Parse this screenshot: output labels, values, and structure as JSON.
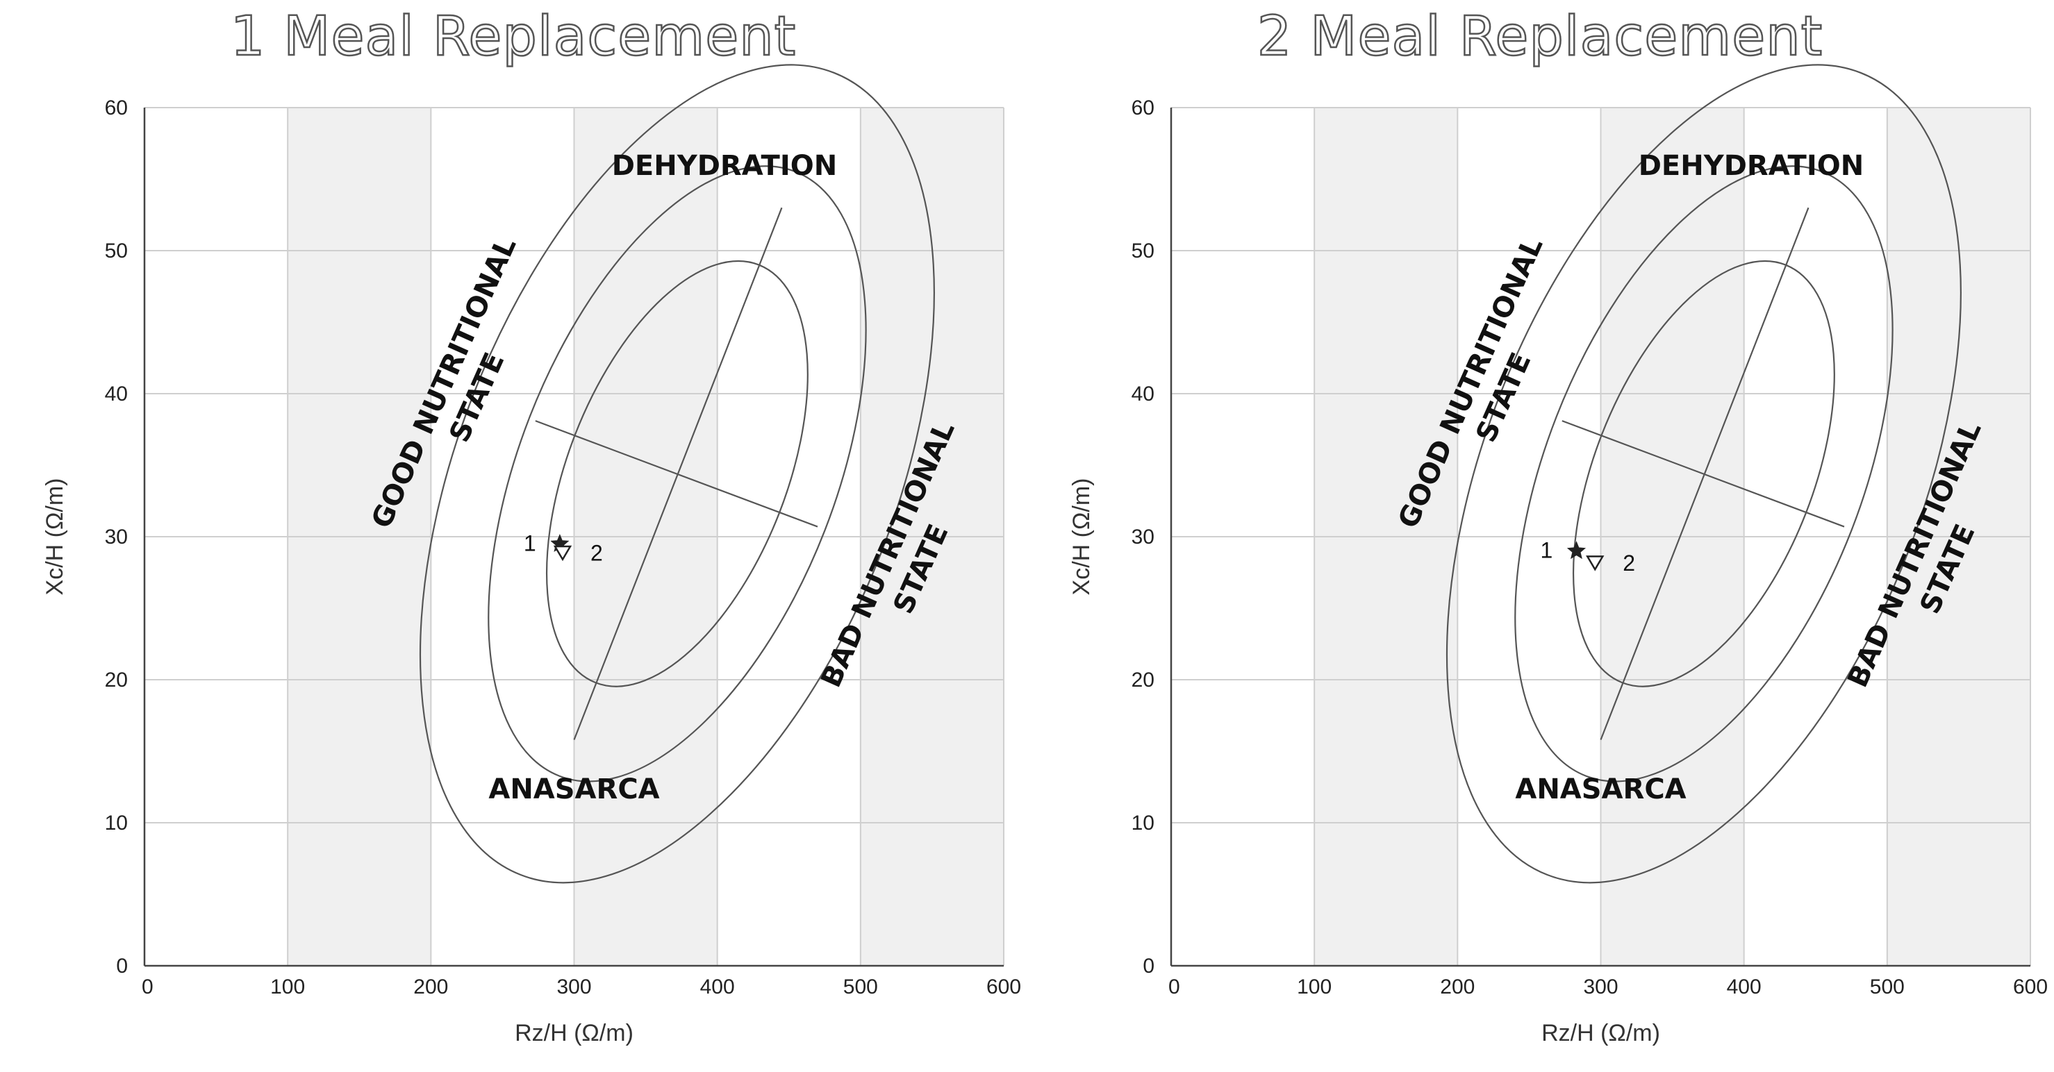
{
  "chart_data": [
    {
      "type": "scatter",
      "title": "1 Meal Replacement",
      "xlabel": "Rz/H (Ω/m)",
      "ylabel": "Xc/H (Ω/m)",
      "xlim": [
        0,
        600
      ],
      "ylim": [
        0,
        60
      ],
      "xticks": [
        "0",
        "100",
        "200",
        "300",
        "400",
        "500",
        "600"
      ],
      "yticks": [
        "0",
        "10",
        "20",
        "30",
        "40",
        "50",
        "60"
      ],
      "shaded_bands": [
        [
          100,
          200
        ],
        [
          300,
          400
        ],
        [
          500,
          600
        ]
      ],
      "tolerance_ellipses": [
        {
          "name": "50%",
          "center": [
            372,
            34.4
          ],
          "half_major": 11.2,
          "half_minor": 83
        },
        {
          "name": "75%",
          "center": [
            372,
            34.4
          ],
          "half_major": 16.2,
          "half_minor": 120
        },
        {
          "name": "95%",
          "center": [
            372,
            34.4
          ],
          "half_major": 21.5,
          "half_minor": 166
        }
      ],
      "axes_lines": [
        {
          "name": "major-axis",
          "from": [
            300,
            15.8
          ],
          "to": [
            445,
            53
          ]
        },
        {
          "name": "minor-axis",
          "from": [
            273,
            38.1
          ],
          "to": [
            470,
            30.7
          ]
        }
      ],
      "regions": {
        "top": "DEHYDRATION",
        "bottom": "ANASARCA",
        "left_line1": "GOOD NUTRITIONAL",
        "left_line2": "STATE",
        "right_line1": "BAD NUTRITIONAL",
        "right_line2": "STATE"
      },
      "series": [
        {
          "name": "1",
          "marker": "star",
          "x": 290,
          "y": 29.5
        },
        {
          "name": "2",
          "marker": "triangle-down",
          "x": 292,
          "y": 29.0
        }
      ]
    },
    {
      "type": "scatter",
      "title": "2 Meal Replacement",
      "xlabel": "Rz/H (Ω/m)",
      "ylabel": "Xc/H (Ω/m)",
      "xlim": [
        0,
        600
      ],
      "ylim": [
        0,
        60
      ],
      "xticks": [
        "0",
        "100",
        "200",
        "300",
        "400",
        "500",
        "600"
      ],
      "yticks": [
        "0",
        "10",
        "20",
        "30",
        "40",
        "50",
        "60"
      ],
      "shaded_bands": [
        [
          100,
          200
        ],
        [
          300,
          400
        ],
        [
          500,
          600
        ]
      ],
      "tolerance_ellipses": [
        {
          "name": "50%",
          "center": [
            372,
            34.4
          ],
          "half_major": 11.2,
          "half_minor": 83
        },
        {
          "name": "75%",
          "center": [
            372,
            34.4
          ],
          "half_major": 16.2,
          "half_minor": 120
        },
        {
          "name": "95%",
          "center": [
            372,
            34.4
          ],
          "half_major": 21.5,
          "half_minor": 166
        }
      ],
      "axes_lines": [
        {
          "name": "major-axis",
          "from": [
            300,
            15.8
          ],
          "to": [
            445,
            53
          ]
        },
        {
          "name": "minor-axis",
          "from": [
            273,
            38.1
          ],
          "to": [
            470,
            30.7
          ]
        }
      ],
      "regions": {
        "top": "DEHYDRATION",
        "bottom": "ANASARCA",
        "left_line1": "GOOD NUTRITIONAL",
        "left_line2": "STATE",
        "right_line1": "BAD NUTRITIONAL",
        "right_line2": "STATE"
      },
      "series": [
        {
          "name": "1",
          "marker": "star",
          "x": 283,
          "y": 29.0
        },
        {
          "name": "2",
          "marker": "triangle-down",
          "x": 296,
          "y": 28.3
        }
      ]
    }
  ]
}
